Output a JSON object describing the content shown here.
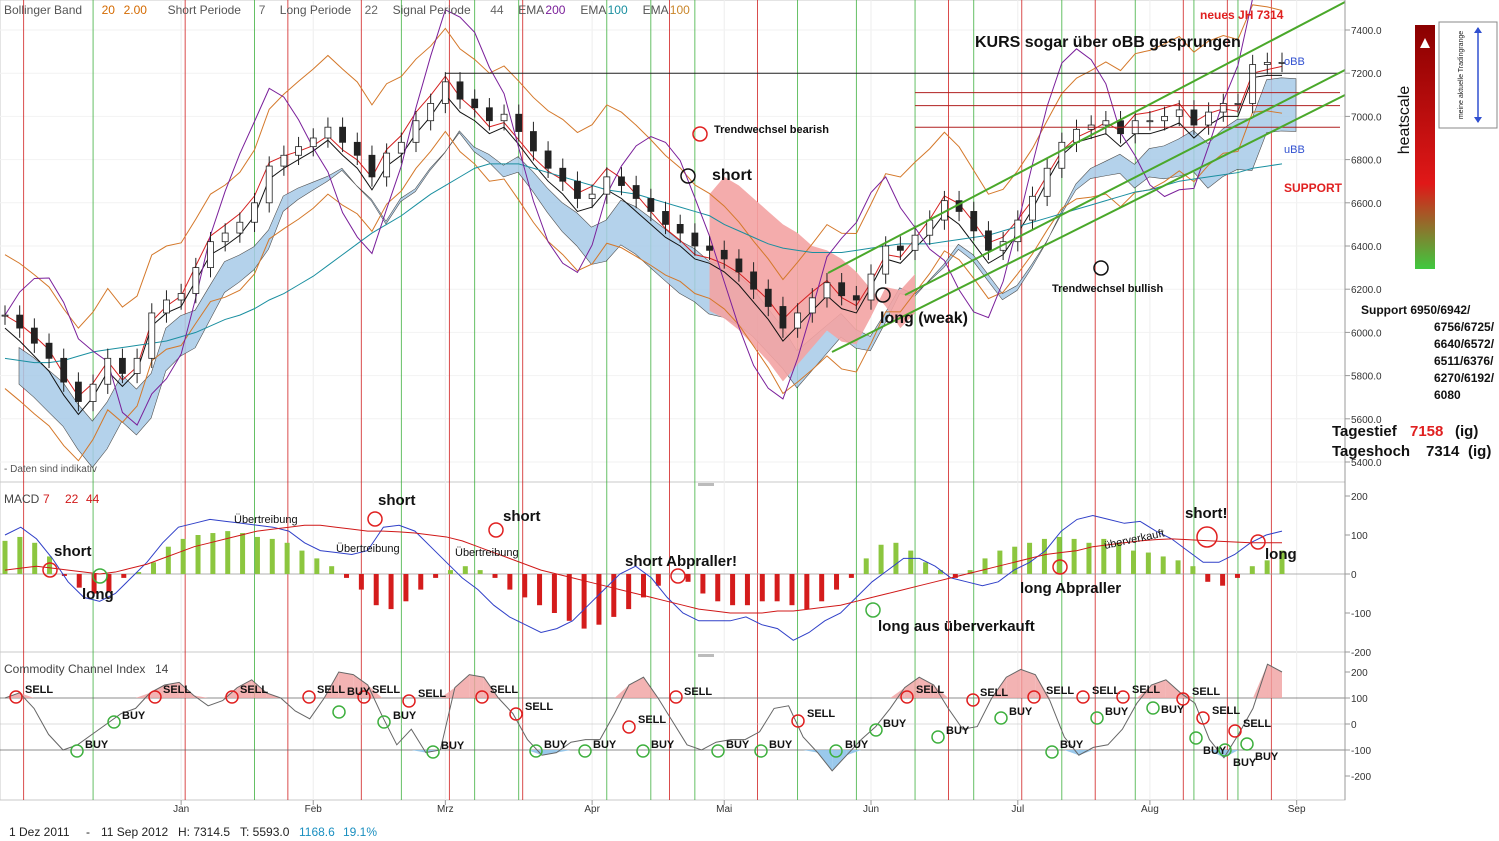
{
  "header": {
    "items": [
      {
        "label": "Bollinger Band",
        "v1": "20",
        "v2": "2.00",
        "color": "#d46a00"
      },
      {
        "label": "Short Periode",
        "v1": "7",
        "color": "#666666"
      },
      {
        "label": "Long Periode",
        "v1": "22",
        "color": "#666666"
      },
      {
        "label": "Signal Periode",
        "v1": "44",
        "color": "#666666"
      },
      {
        "label": "EMA",
        "v1": "200",
        "color": "#7a1f9a"
      },
      {
        "label": "EMA",
        "v1": "100",
        "color": "#1a8fa0"
      },
      {
        "label": "EMA",
        "v1": "100",
        "color": "#c9862a"
      }
    ]
  },
  "chart_data": [
    {
      "type": "line",
      "panel": "price",
      "ylim": [
        5400,
        7500
      ],
      "y_ticks": [
        7400,
        7200,
        7000,
        6800,
        6600,
        6400,
        6200,
        6000,
        5800,
        5600,
        5400
      ],
      "x_ticks": [
        "Jan",
        "Feb",
        "Mrz",
        "Apr",
        "Mai",
        "Jun",
        "Jul",
        "Aug",
        "Sep"
      ],
      "series": [
        {
          "name": "close",
          "values": [
            6080,
            6020,
            5950,
            5880,
            5770,
            5680,
            5760,
            5880,
            5810,
            5880,
            6090,
            6150,
            6180,
            6300,
            6420,
            6460,
            6510,
            6600,
            6770,
            6820,
            6860,
            6900,
            6950,
            6880,
            6820,
            6720,
            6830,
            6880,
            6980,
            7060,
            7160,
            7080,
            7040,
            6980,
            7010,
            6930,
            6840,
            6760,
            6700,
            6620,
            6640,
            6720,
            6680,
            6620,
            6560,
            6500,
            6460,
            6400,
            6380,
            6340,
            6280,
            6200,
            6120,
            6020,
            6090,
            6160,
            6230,
            6170,
            6150,
            6270,
            6400,
            6380,
            6450,
            6520,
            6610,
            6560,
            6470,
            6380,
            6420,
            6520,
            6630,
            6760,
            6880,
            6940,
            6960,
            6980,
            6920,
            6980,
            6980,
            7000,
            7030,
            6960,
            7020,
            7060,
            7060,
            7240,
            7250,
            7250
          ]
        },
        {
          "name": "EMA 200",
          "values": [
            5880,
            5870,
            5860,
            5860,
            5870,
            5890,
            5910,
            5920,
            5930,
            5940,
            5950,
            5960,
            5980,
            6000,
            6030,
            6060,
            6080,
            6110,
            6150,
            6180,
            6220,
            6260,
            6310,
            6360,
            6410,
            6460,
            6500,
            6540,
            6590,
            6640,
            6680,
            6720,
            6760,
            6780,
            6780,
            6780,
            6760,
            6740,
            6720,
            6700,
            6680,
            6660,
            6650,
            6640,
            6620,
            6600,
            6580,
            6560,
            6540,
            6500,
            6470,
            6440,
            6410,
            6390,
            6380,
            6370,
            6370,
            6370,
            6380,
            6390,
            6400,
            6410,
            6410,
            6410,
            6420,
            6430,
            6440,
            6450,
            6470,
            6490,
            6510,
            6530,
            6550,
            6570,
            6590,
            6610,
            6630,
            6650,
            6660,
            6680,
            6700,
            6710,
            6720,
            6730,
            6740,
            6760,
            6770,
            6780
          ]
        }
      ],
      "annotations": [
        "KURS sogar über oBB gesprungen",
        "neues JH 7314",
        "Trendwechsel bearish",
        "short",
        "long (weak)",
        "Trendwechsel bullish",
        "SUPPORT",
        "oBB",
        "uBB",
        "Daten sind indikativ"
      ],
      "levels": [
        7200,
        7110,
        7050,
        6950
      ]
    },
    {
      "type": "bar",
      "panel": "macd",
      "title": "MACD",
      "params": [
        "7",
        "22",
        "44"
      ],
      "ylim": [
        -200,
        200
      ],
      "y_ticks": [
        200,
        100,
        0,
        -100,
        -200
      ],
      "values": [
        85,
        95,
        80,
        45,
        -5,
        -35,
        -50,
        -45,
        -10,
        5,
        30,
        70,
        90,
        100,
        105,
        110,
        105,
        95,
        90,
        80,
        60,
        40,
        20,
        -10,
        -40,
        -80,
        -90,
        -70,
        -40,
        -10,
        10,
        20,
        10,
        -10,
        -40,
        -60,
        -80,
        -100,
        -120,
        -140,
        -130,
        -110,
        -90,
        -60,
        -30,
        0,
        -20,
        -50,
        -70,
        -80,
        -80,
        -70,
        -70,
        -80,
        -90,
        -70,
        -40,
        -10,
        40,
        75,
        80,
        60,
        30,
        10,
        -10,
        10,
        40,
        60,
        70,
        80,
        90,
        95,
        90,
        80,
        90,
        80,
        60,
        55,
        45,
        35,
        20,
        -20,
        -30,
        -10,
        20,
        35,
        60
      ],
      "series": [
        {
          "name": "MACD",
          "values": [
            100,
            120,
            90,
            40,
            -20,
            -60,
            -70,
            -50,
            -10,
            30,
            80,
            120,
            130,
            140,
            135,
            130,
            125,
            120,
            110,
            80,
            60,
            55,
            50,
            60,
            120,
            125,
            110,
            70,
            30,
            -10,
            -40,
            -80,
            -110,
            -130,
            -150,
            -140,
            -120,
            -80,
            -40,
            0,
            20,
            -10,
            -60,
            -100,
            -120,
            -120,
            -120,
            -110,
            -130,
            -140,
            -170,
            -150,
            -120,
            -100,
            -60,
            -20,
            10,
            40,
            40,
            20,
            -10,
            -20,
            -30,
            -20,
            10,
            30,
            60,
            110,
            140,
            150,
            140,
            130,
            135,
            110,
            90,
            60,
            30,
            30,
            50,
            80,
            100,
            110
          ]
        },
        {
          "name": "Signal",
          "values": [
            10,
            15,
            20,
            15,
            10,
            5,
            0,
            5,
            15,
            25,
            40,
            55,
            70,
            80,
            90,
            100,
            110,
            115,
            120,
            125,
            125,
            120,
            115,
            110,
            110,
            108,
            105,
            100,
            95,
            85,
            70,
            55,
            40,
            25,
            10,
            0,
            -10,
            -20,
            -30,
            -40,
            -50,
            -60,
            -70,
            -80,
            -90,
            -95,
            -100,
            -100,
            -100,
            -95,
            -95,
            -90,
            -85,
            -80,
            -70,
            -60,
            -50,
            -40,
            -30,
            -20,
            -10,
            0,
            10,
            20,
            30,
            40,
            50,
            55,
            60,
            70,
            75,
            80,
            85,
            88,
            90,
            88,
            86,
            84,
            82,
            80,
            80,
            80
          ]
        }
      ],
      "annotations": [
        "short",
        "long",
        "Übertreibung",
        "Übertreibung",
        "Übertreibung",
        "short",
        "short",
        "short Abpraller!",
        "long aus überverkauft",
        "long Abpraller",
        "überverkauft",
        "short!",
        "long"
      ]
    },
    {
      "type": "line",
      "panel": "cci",
      "title": "Commodity Channel Index",
      "params": [
        "14"
      ],
      "ylim": [
        -250,
        250
      ],
      "y_ticks": [
        200,
        100,
        0,
        -100,
        -200
      ],
      "series": [
        {
          "name": "CCI",
          "values": [
            100,
            120,
            60,
            -40,
            -100,
            -80,
            -40,
            0,
            40,
            60,
            120,
            150,
            160,
            110,
            70,
            90,
            140,
            170,
            120,
            100,
            50,
            20,
            100,
            200,
            190,
            150,
            30,
            -80,
            -20,
            -110,
            -100,
            140,
            190,
            180,
            100,
            40,
            -60,
            -120,
            -110,
            -70,
            -60,
            -60,
            40,
            150,
            180,
            100,
            10,
            -80,
            -100,
            -70,
            -60,
            -60,
            -30,
            60,
            70,
            -50,
            -110,
            -180,
            -120,
            -60,
            -10,
            60,
            140,
            180,
            150,
            60,
            -20,
            -10,
            100,
            180,
            210,
            190,
            90,
            -50,
            -120,
            -90,
            -80,
            -20,
            80,
            150,
            170,
            120,
            80,
            -60,
            -130,
            -40,
            60,
            230,
            200
          ]
        }
      ],
      "levels": [
        100,
        -100
      ],
      "annotations": [
        "SELL",
        "BUY"
      ]
    }
  ],
  "price_axis_labels": [
    "7400.0",
    "7200.0",
    "7000.0",
    "6800.0",
    "6600.0",
    "6400.0",
    "6200.0",
    "6000.0",
    "5800.0",
    "5600.0",
    "5400.0"
  ],
  "macd_axis_labels": [
    "200",
    "100",
    "0",
    "-100",
    "-200"
  ],
  "cci_axis_labels": [
    "200",
    "100",
    "0",
    "-100",
    "-200"
  ],
  "heatscale": {
    "label": "heatscale",
    "note": "meine aktuelle Tradingrange"
  },
  "support_box": {
    "title": "Support 6950/6942/",
    "lines": [
      "6756/6725/",
      "6640/6572/",
      "6511/6376/",
      "6270/6192/",
      "6080"
    ]
  },
  "day_range": {
    "low_label": "Tagestief",
    "low_value": "7158",
    "low_unit": "(ig)",
    "high_label": "Tageshoch",
    "high_value": "7314",
    "high_unit": "(ig)"
  },
  "footer": {
    "start": "1 Dez 2011",
    "dash": "-",
    "end": "11 Sep 2012",
    "h": "H: 7314.5",
    "t": "T: 5593.0",
    "change": "1168.6",
    "pct": "19.1%",
    "change_color": "#1a8fc0"
  }
}
